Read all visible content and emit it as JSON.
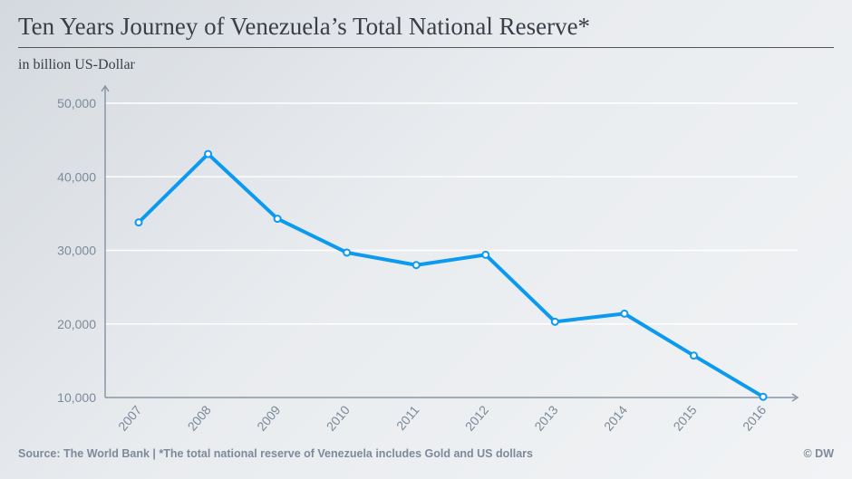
{
  "chart_data": {
    "type": "line",
    "title": "Ten Years Journey of Venezuela’s Total National Reserve*",
    "subtitle": "in billion US-Dollar",
    "x": [
      "2007",
      "2008",
      "2009",
      "2010",
      "2011",
      "2012",
      "2013",
      "2014",
      "2015",
      "2016"
    ],
    "series": [
      {
        "values": [
          33800,
          43100,
          34300,
          29700,
          28000,
          29400,
          20300,
          21400,
          15700,
          10100
        ]
      }
    ],
    "yticks": [
      "10,000",
      "20,000",
      "30,000",
      "40,000",
      "50,000"
    ],
    "ytick_values": [
      10000,
      20000,
      30000,
      40000,
      50000
    ],
    "ylim": [
      10000,
      50000
    ],
    "grid": true,
    "line_color": "#0b9aef"
  },
  "footer": {
    "source": "Source:  The World Bank | *The total national reserve of Venezuela includes Gold and US dollars",
    "copyright": "© DW"
  }
}
